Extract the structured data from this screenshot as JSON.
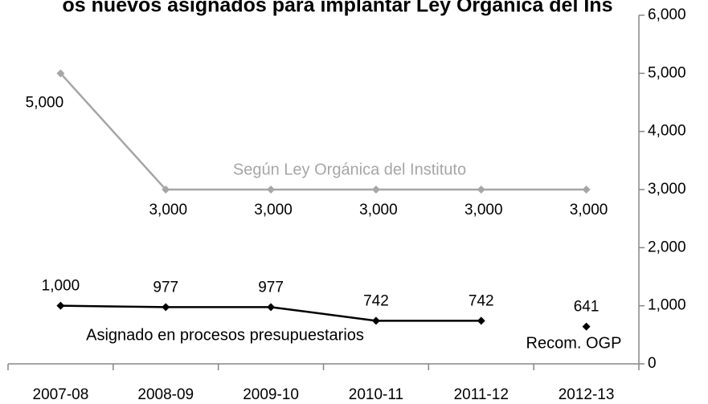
{
  "chart_data": {
    "type": "line",
    "title": "os nuevos asignados para implantar Ley Orgánica del Ins",
    "categories": [
      "2007-08",
      "2008-09",
      "2009-10",
      "2010-11",
      "2011-12",
      "2012-13"
    ],
    "series": [
      {
        "name": "Según Ley Orgánica del Instituto",
        "color": "#a6a6a6",
        "values": [
          5000,
          3000,
          3000,
          3000,
          3000,
          3000
        ],
        "value_labels": [
          "5,000",
          "3,000",
          "3,000",
          "3,000",
          "3,000",
          "3,000"
        ]
      },
      {
        "name": "Asignado en procesos presupuestarios",
        "color": "#000000",
        "values": [
          1000,
          977,
          977,
          742,
          742,
          null
        ],
        "value_labels": [
          "1,000",
          "977",
          "977",
          "742",
          "742",
          null
        ]
      },
      {
        "name": "Recom. OGP",
        "color": "#000000",
        "values": [
          null,
          null,
          null,
          null,
          null,
          641
        ],
        "value_labels": [
          null,
          null,
          null,
          null,
          null,
          "641"
        ]
      }
    ],
    "ylim": [
      0,
      6000
    ],
    "yticks": [
      {
        "value": 0,
        "label": "0"
      },
      {
        "value": 1000,
        "label": "1,000"
      },
      {
        "value": 2000,
        "label": "2,000"
      },
      {
        "value": 3000,
        "label": "3,000"
      },
      {
        "value": 4000,
        "label": "4,000"
      },
      {
        "value": 5000,
        "label": "5,000"
      },
      {
        "value": 6000,
        "label": "6,000"
      }
    ],
    "y_axis_side": "right",
    "grid": false
  }
}
